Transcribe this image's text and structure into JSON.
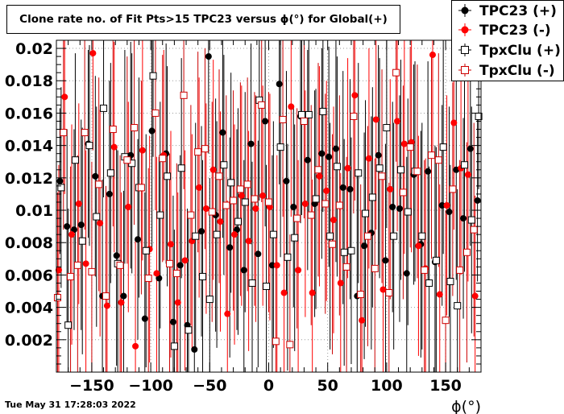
{
  "chart_data": {
    "type": "scatter",
    "title": "Clone rate no. of Fit Pts>15 TPC23 versus ϕ(°) for Global(+)",
    "xlabel": "ϕ(°)",
    "ylabel": "",
    "xlim": [
      -180,
      180
    ],
    "ylim": [
      0,
      0.0205
    ],
    "x_ticks": [
      -150,
      -100,
      -50,
      0,
      50,
      100,
      150
    ],
    "x_tick_labels": [
      "−150",
      "−100",
      "−50",
      "0",
      "50",
      "100",
      "150"
    ],
    "y_ticks": [
      0.002,
      0.004,
      0.006,
      0.008,
      0.01,
      0.012,
      0.014,
      0.016,
      0.018,
      0.02
    ],
    "y_tick_labels": [
      "0.002",
      "0.004",
      "0.006",
      "0.008",
      "0.01",
      "0.012",
      "0.014",
      "0.016",
      "0.018",
      "0.02"
    ],
    "grid": true,
    "legend_position": "top-right",
    "series": [
      {
        "name": "TPC23 (+)",
        "marker": "filled-circle",
        "color": "#000000",
        "x": [
          -177,
          -171,
          -165,
          -159,
          -153,
          -147,
          -141,
          -135,
          -129,
          -123,
          -117,
          -111,
          -105,
          -99,
          -93,
          -87,
          -81,
          -75,
          -69,
          -63,
          -57,
          -51,
          -45,
          -39,
          -33,
          -27,
          -21,
          -15,
          -9,
          -3,
          3,
          9,
          15,
          21,
          27,
          33,
          39,
          45,
          51,
          57,
          63,
          69,
          75,
          81,
          87,
          93,
          99,
          105,
          111,
          117,
          123,
          129,
          135,
          141,
          147,
          153,
          159,
          165,
          171,
          177
        ],
        "y": [
          0.0118,
          0.009,
          0.0088,
          0.0091,
          0.0141,
          0.0121,
          0.0047,
          0.011,
          0.0072,
          0.0047,
          0.0134,
          0.0082,
          0.0033,
          0.0149,
          0.0058,
          0.0135,
          0.0031,
          0.0066,
          0.0029,
          0.0014,
          0.0087,
          0.0195,
          0.0097,
          0.0148,
          0.0077,
          0.0088,
          0.0063,
          0.0141,
          0.0073,
          0.0155,
          0.0066,
          0.0178,
          0.0118,
          0.0102,
          0.0158,
          0.0131,
          0.0104,
          0.0135,
          0.0133,
          0.0138,
          0.0114,
          0.0113,
          0.0047,
          0.0078,
          0.0086,
          0.0134,
          0.0069,
          0.0102,
          0.0101,
          0.0061,
          0.0122,
          0.0079,
          0.0124,
          0.0068,
          0.0103,
          0.0099,
          0.0125,
          0.0095,
          0.0138,
          0.0106
        ],
        "yerr": [
          0.0045,
          0.006,
          0.0062,
          0.0065,
          0.0058,
          0.0062,
          0.0072,
          0.007,
          0.0068,
          0.0065,
          0.007,
          0.0062,
          0.0078,
          0.0072,
          0.0075,
          0.0068,
          0.0078,
          0.0068,
          0.0072,
          0.007,
          0.0065,
          0.006,
          0.0072,
          0.0065,
          0.0068,
          0.0062,
          0.0068,
          0.0062,
          0.007,
          0.0065,
          0.0068,
          0.0062,
          0.0068,
          0.0062,
          0.0066,
          0.0068,
          0.007,
          0.0065,
          0.0068,
          0.007,
          0.0072,
          0.0068,
          0.0075,
          0.007,
          0.0072,
          0.0068,
          0.0072,
          0.0065,
          0.007,
          0.0072,
          0.0068,
          0.007,
          0.0068,
          0.0072,
          0.0062,
          0.0065,
          0.0068,
          0.0062,
          0.006,
          0.005
        ]
      },
      {
        "name": "TPC23 (-)",
        "marker": "filled-circle",
        "color": "#ff0000",
        "x": [
          -178,
          -173,
          -167,
          -161,
          -155,
          -149,
          -143,
          -137,
          -131,
          -125,
          -119,
          -113,
          -107,
          -101,
          -95,
          -89,
          -83,
          -77,
          -71,
          -65,
          -59,
          -53,
          -47,
          -41,
          -35,
          -29,
          -23,
          -17,
          -11,
          -5,
          1,
          7,
          13,
          19,
          25,
          31,
          37,
          43,
          49,
          55,
          61,
          67,
          73,
          79,
          85,
          91,
          97,
          103,
          109,
          115,
          121,
          127,
          133,
          139,
          145,
          151,
          157,
          163,
          169,
          175
        ],
        "y": [
          0.0063,
          0.017,
          0.0085,
          0.0104,
          0.0067,
          0.0197,
          0.0092,
          0.0041,
          0.0139,
          0.0043,
          0.0102,
          0.0016,
          0.0137,
          0.0076,
          0.0061,
          0.0134,
          0.0079,
          0.0043,
          0.0069,
          0.0081,
          0.0114,
          0.0101,
          0.0125,
          0.0093,
          0.0036,
          0.0085,
          0.0109,
          0.0081,
          0.0101,
          0.0109,
          0.0102,
          0.0066,
          0.0049,
          0.0164,
          0.0063,
          0.0104,
          0.0049,
          0.0121,
          0.0112,
          0.0094,
          0.0055,
          0.0126,
          0.0171,
          0.0032,
          0.0132,
          0.0156,
          0.0051,
          0.0113,
          0.0155,
          0.0141,
          0.0142,
          0.0078,
          0.0064,
          0.0196,
          0.0048,
          0.0103,
          0.0154,
          0.0126,
          0.0122,
          0.0047
        ],
        "yerr": [
          0.0065,
          0.006,
          0.0068,
          0.0062,
          0.007,
          0.006,
          0.007,
          0.0068,
          0.0065,
          0.0068,
          0.0065,
          0.0065,
          0.0068,
          0.007,
          0.0072,
          0.0065,
          0.007,
          0.0068,
          0.0068,
          0.0066,
          0.0068,
          0.0065,
          0.0068,
          0.0068,
          0.007,
          0.0068,
          0.0068,
          0.0068,
          0.007,
          0.0068,
          0.007,
          0.0068,
          0.007,
          0.0068,
          0.0068,
          0.007,
          0.007,
          0.0068,
          0.0068,
          0.007,
          0.0068,
          0.0068,
          0.0065,
          0.0068,
          0.0068,
          0.0068,
          0.007,
          0.0068,
          0.0068,
          0.0068,
          0.0068,
          0.0068,
          0.0068,
          0.0062,
          0.0068,
          0.0068,
          0.0066,
          0.0066,
          0.0066,
          0.0062
        ]
      },
      {
        "name": "TpxClu (+)",
        "marker": "open-square",
        "color": "#000000",
        "x": [
          -176,
          -170,
          -164,
          -158,
          -152,
          -146,
          -140,
          -134,
          -128,
          -122,
          -116,
          -110,
          -104,
          -98,
          -92,
          -86,
          -80,
          -74,
          -68,
          -62,
          -56,
          -50,
          -44,
          -38,
          -32,
          -26,
          -20,
          -14,
          -8,
          -2,
          4,
          10,
          16,
          22,
          28,
          34,
          40,
          46,
          52,
          58,
          64,
          70,
          76,
          82,
          88,
          94,
          100,
          106,
          112,
          118,
          124,
          130,
          136,
          142,
          148,
          154,
          160,
          166,
          172,
          178
        ],
        "y": [
          0.0114,
          0.0029,
          0.0131,
          0.0081,
          0.014,
          0.0096,
          0.0163,
          0.0123,
          0.0067,
          0.0133,
          0.0129,
          0.0114,
          0.0075,
          0.0183,
          0.0097,
          0.0121,
          0.0016,
          0.0126,
          0.0026,
          0.0084,
          0.0059,
          0.0045,
          0.0085,
          0.0128,
          0.0117,
          0.0093,
          0.0105,
          0.0055,
          0.0168,
          0.0053,
          0.0085,
          0.0139,
          0.0071,
          0.0083,
          0.0159,
          0.0159,
          0.0107,
          0.0161,
          0.0084,
          0.0127,
          0.0074,
          0.0075,
          0.0123,
          0.0098,
          0.0108,
          0.0126,
          0.0151,
          0.0084,
          0.0125,
          0.0099,
          0.0124,
          0.0084,
          0.0055,
          0.0069,
          0.0139,
          0.0056,
          0.0041,
          0.0128,
          0.0094,
          0.0158
        ],
        "yerr": [
          0.0062,
          0.0072,
          0.0066,
          0.007,
          0.0062,
          0.0068,
          0.0055,
          0.0068,
          0.007,
          0.0066,
          0.0068,
          0.0068,
          0.0072,
          0.005,
          0.007,
          0.0068,
          0.0072,
          0.0068,
          0.0072,
          0.007,
          0.0072,
          0.0075,
          0.007,
          0.0068,
          0.0068,
          0.007,
          0.0068,
          0.0075,
          0.0062,
          0.0075,
          0.007,
          0.0068,
          0.007,
          0.007,
          0.0062,
          0.0062,
          0.0068,
          0.0062,
          0.007,
          0.0068,
          0.007,
          0.007,
          0.0068,
          0.007,
          0.0068,
          0.0068,
          0.0062,
          0.007,
          0.0068,
          0.007,
          0.0068,
          0.007,
          0.0072,
          0.007,
          0.0066,
          0.0072,
          0.0072,
          0.0066,
          0.007,
          0.0045
        ]
      },
      {
        "name": "TpxClu (-)",
        "marker": "open-square",
        "color": "#cc0000",
        "x": [
          -179,
          -174,
          -168,
          -162,
          -156,
          -150,
          -144,
          -138,
          -132,
          -126,
          -120,
          -114,
          -108,
          -102,
          -96,
          -90,
          -84,
          -78,
          -72,
          -66,
          -60,
          -54,
          -48,
          -42,
          -36,
          -30,
          -24,
          -18,
          -12,
          -6,
          0,
          6,
          12,
          18,
          24,
          30,
          36,
          42,
          48,
          54,
          60,
          66,
          72,
          78,
          84,
          90,
          96,
          102,
          108,
          114,
          120,
          126,
          132,
          138,
          144,
          150,
          156,
          162,
          168,
          174
        ],
        "y": [
          0.0046,
          0.0148,
          0.0059,
          0.0066,
          0.0148,
          0.0062,
          0.0116,
          0.0047,
          0.015,
          0.0066,
          0.0131,
          0.0151,
          0.0114,
          0.0058,
          0.016,
          0.0132,
          0.0067,
          0.0061,
          0.0171,
          0.0097,
          0.0136,
          0.0138,
          0.0099,
          0.0121,
          0.0103,
          0.0106,
          0.0113,
          0.0116,
          0.0107,
          0.0165,
          0.0105,
          0.0019,
          0.0156,
          0.0017,
          0.0095,
          0.0155,
          0.0097,
          0.0125,
          0.0104,
          0.0079,
          0.0103,
          0.0065,
          0.0158,
          0.0048,
          0.0084,
          0.0064,
          0.0121,
          0.0049,
          0.0185,
          0.0111,
          0.0139,
          0.0124,
          0.0063,
          0.0134,
          0.0131,
          0.0032,
          0.0113,
          0.0063,
          0.0074,
          0.0088
        ],
        "yerr": [
          0.0065,
          0.006,
          0.0068,
          0.0068,
          0.006,
          0.0068,
          0.0066,
          0.0068,
          0.006,
          0.0068,
          0.0064,
          0.006,
          0.0066,
          0.0068,
          0.006,
          0.0064,
          0.0068,
          0.0068,
          0.0058,
          0.0068,
          0.0062,
          0.0062,
          0.0068,
          0.0066,
          0.0068,
          0.0068,
          0.0066,
          0.0066,
          0.0066,
          0.006,
          0.0068,
          0.0068,
          0.006,
          0.0068,
          0.0068,
          0.006,
          0.0068,
          0.0066,
          0.0068,
          0.0068,
          0.0068,
          0.0068,
          0.006,
          0.0068,
          0.0068,
          0.0068,
          0.0066,
          0.0068,
          0.0055,
          0.0066,
          0.0062,
          0.0066,
          0.0068,
          0.0064,
          0.0066,
          0.0068,
          0.0066,
          0.0068,
          0.0068,
          0.0066
        ]
      }
    ]
  },
  "footer": {
    "timestamp": "Tue May 31 17:28:03 2022"
  }
}
